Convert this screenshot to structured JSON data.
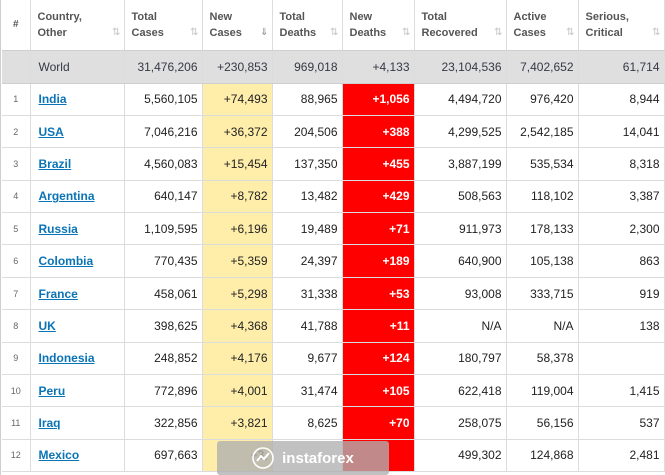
{
  "columns": [
    {
      "label": "#",
      "sort": ""
    },
    {
      "label": "Country,\nOther",
      "sort": "⇅"
    },
    {
      "label": "Total\nCases",
      "sort": "⇅"
    },
    {
      "label": "New\nCases",
      "sort": "⇓"
    },
    {
      "label": "Total\nDeaths",
      "sort": "⇅"
    },
    {
      "label": "New\nDeaths",
      "sort": "⇅"
    },
    {
      "label": "Total\nRecovered",
      "sort": "⇅"
    },
    {
      "label": "Active\nCases",
      "sort": "⇅"
    },
    {
      "label": "Serious,\nCritical",
      "sort": "⇅"
    }
  ],
  "world": {
    "name": "World",
    "total_cases": "31,476,206",
    "new_cases": "+230,853",
    "total_deaths": "969,018",
    "new_deaths": "+4,133",
    "total_recovered": "23,104,536",
    "active_cases": "7,402,652",
    "serious_critical": "61,714"
  },
  "rows": [
    {
      "rank": "1",
      "country": "India",
      "total_cases": "5,560,105",
      "new_cases": "+74,493",
      "total_deaths": "88,965",
      "new_deaths": "+1,056",
      "total_recovered": "4,494,720",
      "active_cases": "976,420",
      "serious_critical": "8,944"
    },
    {
      "rank": "2",
      "country": "USA",
      "total_cases": "7,046,216",
      "new_cases": "+36,372",
      "total_deaths": "204,506",
      "new_deaths": "+388",
      "total_recovered": "4,299,525",
      "active_cases": "2,542,185",
      "serious_critical": "14,041"
    },
    {
      "rank": "3",
      "country": "Brazil",
      "total_cases": "4,560,083",
      "new_cases": "+15,454",
      "total_deaths": "137,350",
      "new_deaths": "+455",
      "total_recovered": "3,887,199",
      "active_cases": "535,534",
      "serious_critical": "8,318"
    },
    {
      "rank": "4",
      "country": "Argentina",
      "total_cases": "640,147",
      "new_cases": "+8,782",
      "total_deaths": "13,482",
      "new_deaths": "+429",
      "total_recovered": "508,563",
      "active_cases": "118,102",
      "serious_critical": "3,387"
    },
    {
      "rank": "5",
      "country": "Russia",
      "total_cases": "1,109,595",
      "new_cases": "+6,196",
      "total_deaths": "19,489",
      "new_deaths": "+71",
      "total_recovered": "911,973",
      "active_cases": "178,133",
      "serious_critical": "2,300"
    },
    {
      "rank": "6",
      "country": "Colombia",
      "total_cases": "770,435",
      "new_cases": "+5,359",
      "total_deaths": "24,397",
      "new_deaths": "+189",
      "total_recovered": "640,900",
      "active_cases": "105,138",
      "serious_critical": "863"
    },
    {
      "rank": "7",
      "country": "France",
      "total_cases": "458,061",
      "new_cases": "+5,298",
      "total_deaths": "31,338",
      "new_deaths": "+53",
      "total_recovered": "93,008",
      "active_cases": "333,715",
      "serious_critical": "919"
    },
    {
      "rank": "8",
      "country": "UK",
      "total_cases": "398,625",
      "new_cases": "+4,368",
      "total_deaths": "41,788",
      "new_deaths": "+11",
      "total_recovered": "N/A",
      "active_cases": "N/A",
      "serious_critical": "138"
    },
    {
      "rank": "9",
      "country": "Indonesia",
      "total_cases": "248,852",
      "new_cases": "+4,176",
      "total_deaths": "9,677",
      "new_deaths": "+124",
      "total_recovered": "180,797",
      "active_cases": "58,378",
      "serious_critical": ""
    },
    {
      "rank": "10",
      "country": "Peru",
      "total_cases": "772,896",
      "new_cases": "+4,001",
      "total_deaths": "31,474",
      "new_deaths": "+105",
      "total_recovered": "622,418",
      "active_cases": "119,004",
      "serious_critical": "1,415"
    },
    {
      "rank": "11",
      "country": "Iraq",
      "total_cases": "322,856",
      "new_cases": "+3,821",
      "total_deaths": "8,625",
      "new_deaths": "+70",
      "total_recovered": "258,075",
      "active_cases": "56,156",
      "serious_critical": "537"
    },
    {
      "rank": "12",
      "country": "Mexico",
      "total_cases": "697,663",
      "new_cases": "+3,",
      "total_deaths": "",
      "new_deaths": "",
      "total_recovered": "499,302",
      "active_cases": "124,868",
      "serious_critical": "2,481"
    }
  ],
  "watermark": {
    "text": "instaforex",
    "icon": "instaforex-logo-icon"
  },
  "colors": {
    "new_cases_bg": "#ffeeaa",
    "new_deaths_bg": "#ff0000",
    "country_link": "#0a74b6",
    "world_row_bg": "#dfdfdf"
  }
}
